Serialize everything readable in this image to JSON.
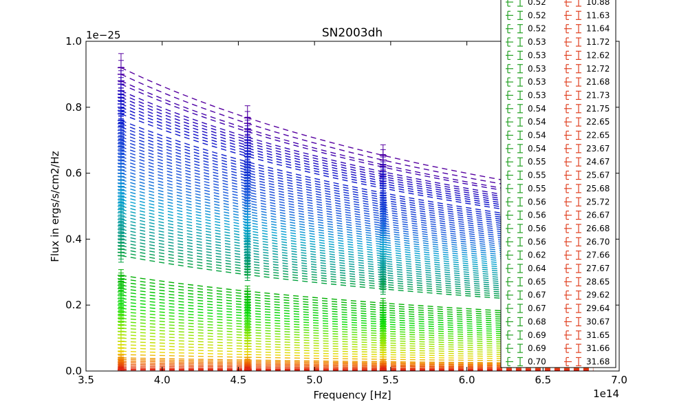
{
  "chart_data": {
    "type": "line",
    "title": "SN2003dh",
    "xlabel": "Frequency [Hz]",
    "ylabel": "Flux in ergs/s/cm2/Hz",
    "x_multiplier_label": "1e14",
    "y_multiplier_label": "1e−25",
    "xlim": [
      3.5,
      7.0
    ],
    "ylim": [
      0.0,
      1.0
    ],
    "x_ticks": [
      3.5,
      4.0,
      4.5,
      5.0,
      5.5,
      6.0,
      6.5,
      7.0
    ],
    "x_tick_labels": [
      "3.5",
      "4.0",
      "4.5",
      "5.0",
      "5.5",
      "6.0",
      "6.5",
      "7.0"
    ],
    "y_ticks": [
      0.0,
      0.2,
      0.4,
      0.6,
      0.8,
      1.0
    ],
    "y_tick_labels": [
      "0.0",
      "0.2",
      "0.4",
      "0.6",
      "0.8",
      "1.0"
    ],
    "grid": false,
    "line_style": "dashed",
    "x_range_of_curves": [
      3.73,
      6.83
    ],
    "measurement_frequencies": [
      3.73,
      4.56,
      5.45
    ],
    "spectral_slope": -0.9,
    "series_peak_fluxes": [
      0.92,
      0.9,
      0.88,
      0.87,
      0.85,
      0.84,
      0.83,
      0.82,
      0.81,
      0.8,
      0.79,
      0.78,
      0.76,
      0.75,
      0.74,
      0.73,
      0.72,
      0.71,
      0.7,
      0.69,
      0.68,
      0.67,
      0.66,
      0.65,
      0.64,
      0.63,
      0.62,
      0.61,
      0.6,
      0.59,
      0.58,
      0.57,
      0.56,
      0.55,
      0.54,
      0.53,
      0.52,
      0.51,
      0.5,
      0.49,
      0.48,
      0.47,
      0.46,
      0.45,
      0.44,
      0.43,
      0.42,
      0.41,
      0.4,
      0.39,
      0.38,
      0.37,
      0.36,
      0.35,
      0.29,
      0.28,
      0.27,
      0.26,
      0.25,
      0.24,
      0.23,
      0.22,
      0.21,
      0.2,
      0.19,
      0.18,
      0.17,
      0.16,
      0.15,
      0.14,
      0.13,
      0.12,
      0.11,
      0.1,
      0.09,
      0.08,
      0.07,
      0.06,
      0.05,
      0.04,
      0.035,
      0.03,
      0.025,
      0.02,
      0.015,
      0.01,
      0.006,
      0.003
    ],
    "legend": {
      "placement": "upper-right",
      "left_column": {
        "color": "#22a022",
        "entries": [
          "0.52",
          "0.52",
          "0.52",
          "0.53",
          "0.53",
          "0.53",
          "0.53",
          "0.53",
          "0.54",
          "0.54",
          "0.54",
          "0.54",
          "0.55",
          "0.55",
          "0.55",
          "0.56",
          "0.56",
          "0.56",
          "0.56",
          "0.62",
          "0.64",
          "0.65",
          "0.67",
          "0.67",
          "0.68",
          "0.69",
          "0.69",
          "0.70"
        ]
      },
      "right_column": {
        "color": "#e04020",
        "entries": [
          "10.88",
          "11.63",
          "11.64",
          "11.72",
          "12.62",
          "12.72",
          "21.68",
          "21.73",
          "21.75",
          "22.65",
          "22.65",
          "23.67",
          "24.67",
          "25.67",
          "25.68",
          "25.72",
          "26.67",
          "26.68",
          "26.70",
          "27.66",
          "27.67",
          "28.65",
          "29.62",
          "29.64",
          "30.67",
          "31.65",
          "31.66",
          "31.68"
        ]
      }
    }
  }
}
